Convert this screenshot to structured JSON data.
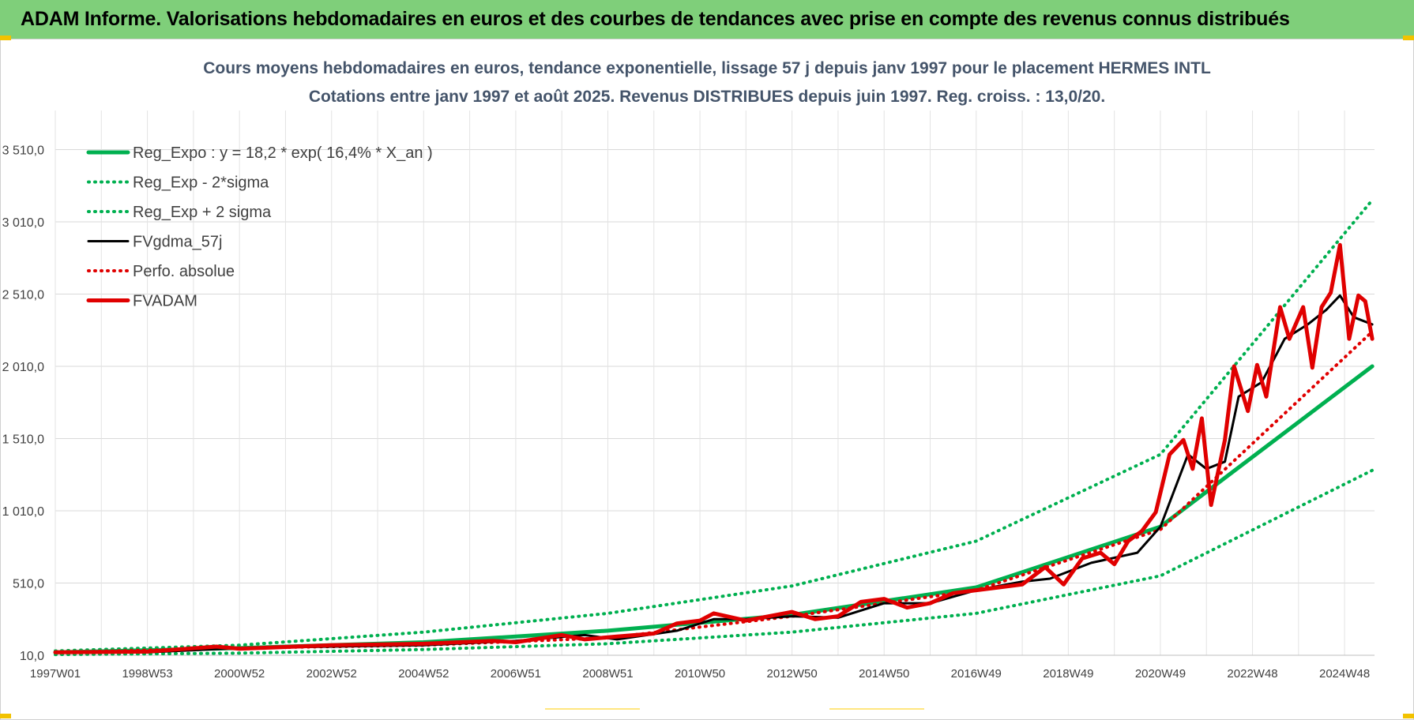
{
  "header": {
    "title": "ADAM Informe. Valorisations hebdomadaires en euros et des courbes de tendances avec prise en compte des revenus connus distribués",
    "bg_color": "#7fcf7a"
  },
  "chart_data": {
    "type": "line",
    "title": "Cours moyens hebdomadaires en euros, tendance exponentielle, lissage 57 j depuis janv 1997 pour le placement HERMES INTL",
    "subtitle": "Cotations entre janv 1997 et août 2025. Revenus DISTRIBUES depuis juin 1997. Reg. croiss. : 13,0/20.",
    "xlabel": "",
    "ylabel": "",
    "x_tick_labels": [
      "1997W01",
      "1998W53",
      "2000W52",
      "2002W52",
      "2004W52",
      "2006W51",
      "2008W51",
      "2010W50",
      "2012W50",
      "2014W50",
      "2016W49",
      "2018W49",
      "2020W49",
      "2022W48",
      "2024W48"
    ],
    "x_tick_years": [
      1997.0,
      1999.0,
      2001.0,
      2003.0,
      2005.0,
      2007.0,
      2009.0,
      2011.0,
      2013.0,
      2015.0,
      2017.0,
      2019.0,
      2021.0,
      2023.0,
      2025.0
    ],
    "x_range": [
      1997.0,
      2025.65
    ],
    "y_ticks": [
      10,
      510,
      1010,
      1510,
      2010,
      2510,
      3010,
      3510
    ],
    "y_tick_labels": [
      "10,0",
      "510,0",
      "1 010,0",
      "1 510,0",
      "2 010,0",
      "2 510,0",
      "3 010,0",
      "3 510,0"
    ],
    "ylim": [
      10,
      3600
    ],
    "grid": true,
    "legend_position": "top-left",
    "legend": [
      {
        "name": "Reg_Expo : y = 18,2 * exp( 16,4% *  X_an )",
        "color": "#00b050",
        "style": "solid-thick"
      },
      {
        "name": "Reg_Exp - 2*sigma",
        "color": "#00b050",
        "style": "dotted"
      },
      {
        "name": "Reg_Exp + 2 sigma",
        "color": "#00b050",
        "style": "dotted"
      },
      {
        "name": "FVgdma_57j",
        "color": "#000000",
        "style": "solid"
      },
      {
        "name": "Perfo. absolue",
        "color": "#e00000",
        "style": "dotted"
      },
      {
        "name": "FVADAM",
        "color": "#e00000",
        "style": "solid-thick"
      }
    ],
    "series": [
      {
        "name": "Reg_Expo : y = 18,2 * exp( 16,4% *  X_an )",
        "x": [
          1997.0,
          2001.0,
          2005.0,
          2009.0,
          2013.0,
          2017.0,
          2021.0,
          2025.6
        ],
        "values": [
          30,
          60,
          100,
          180,
          290,
          480,
          900,
          2010
        ]
      },
      {
        "name": "Reg_Exp - 2*sigma",
        "x": [
          1997.0,
          2001.0,
          2005.0,
          2009.0,
          2013.0,
          2017.0,
          2021.0,
          2025.6
        ],
        "values": [
          15,
          25,
          50,
          90,
          170,
          300,
          560,
          1290
        ]
      },
      {
        "name": "Reg_Exp + 2 sigma",
        "x": [
          1997.0,
          2001.0,
          2005.0,
          2009.0,
          2013.0,
          2017.0,
          2021.0,
          2025.6
        ],
        "values": [
          40,
          80,
          170,
          300,
          490,
          800,
          1400,
          3160
        ]
      },
      {
        "name": "FVgdma_57j",
        "x": [
          1997.0,
          1999.0,
          2001.0,
          2003.0,
          2005.0,
          2007.0,
          2008.5,
          2009.2,
          2010.5,
          2011.3,
          2012.0,
          2013.0,
          2014.0,
          2015.0,
          2016.0,
          2017.0,
          2018.0,
          2018.6,
          2019.5,
          2020.5,
          2021.0,
          2021.6,
          2022.0,
          2022.4,
          2022.7,
          2023.2,
          2023.7,
          2024.2,
          2024.6,
          2024.9,
          2025.2,
          2025.6
        ],
        "values": [
          30,
          30,
          60,
          70,
          80,
          110,
          150,
          120,
          180,
          260,
          260,
          280,
          270,
          370,
          370,
          460,
          520,
          540,
          650,
          720,
          900,
          1400,
          1300,
          1350,
          1800,
          1900,
          2200,
          2300,
          2400,
          2500,
          2350,
          2300
        ]
      },
      {
        "name": "Perfo. absolue",
        "x": [
          1997.0,
          2001.0,
          2005.0,
          2009.0,
          2013.0,
          2017.0,
          2021.0,
          2025.6
        ],
        "values": [
          30,
          60,
          80,
          130,
          280,
          460,
          880,
          2250
        ]
      },
      {
        "name": "FVADAM",
        "x": [
          1997.0,
          1999.0,
          2000.5,
          2001.0,
          2003.0,
          2005.0,
          2006.5,
          2007.0,
          2008.0,
          2008.5,
          2009.2,
          2010.0,
          2010.5,
          2011.0,
          2011.3,
          2012.0,
          2012.5,
          2013.0,
          2013.5,
          2014.0,
          2014.5,
          2015.0,
          2015.5,
          2016.0,
          2016.5,
          2017.0,
          2017.5,
          2018.0,
          2018.5,
          2018.9,
          2019.3,
          2019.7,
          2020.0,
          2020.3,
          2020.6,
          2020.9,
          2021.2,
          2021.5,
          2021.7,
          2021.9,
          2022.1,
          2022.4,
          2022.6,
          2022.9,
          2023.1,
          2023.3,
          2023.6,
          2023.8,
          2024.1,
          2024.3,
          2024.5,
          2024.7,
          2024.9,
          2025.1,
          2025.3,
          2025.45,
          2025.6
        ],
        "values": [
          30,
          35,
          70,
          55,
          80,
          90,
          110,
          100,
          150,
          120,
          140,
          160,
          230,
          250,
          300,
          250,
          280,
          310,
          260,
          280,
          380,
          400,
          340,
          370,
          440,
          460,
          480,
          500,
          620,
          500,
          680,
          720,
          640,
          800,
          870,
          1000,
          1400,
          1500,
          1300,
          1650,
          1050,
          1500,
          2010,
          1700,
          2020,
          1800,
          2420,
          2200,
          2420,
          2000,
          2420,
          2520,
          2850,
          2200,
          2500,
          2460,
          2200
        ]
      }
    ]
  }
}
